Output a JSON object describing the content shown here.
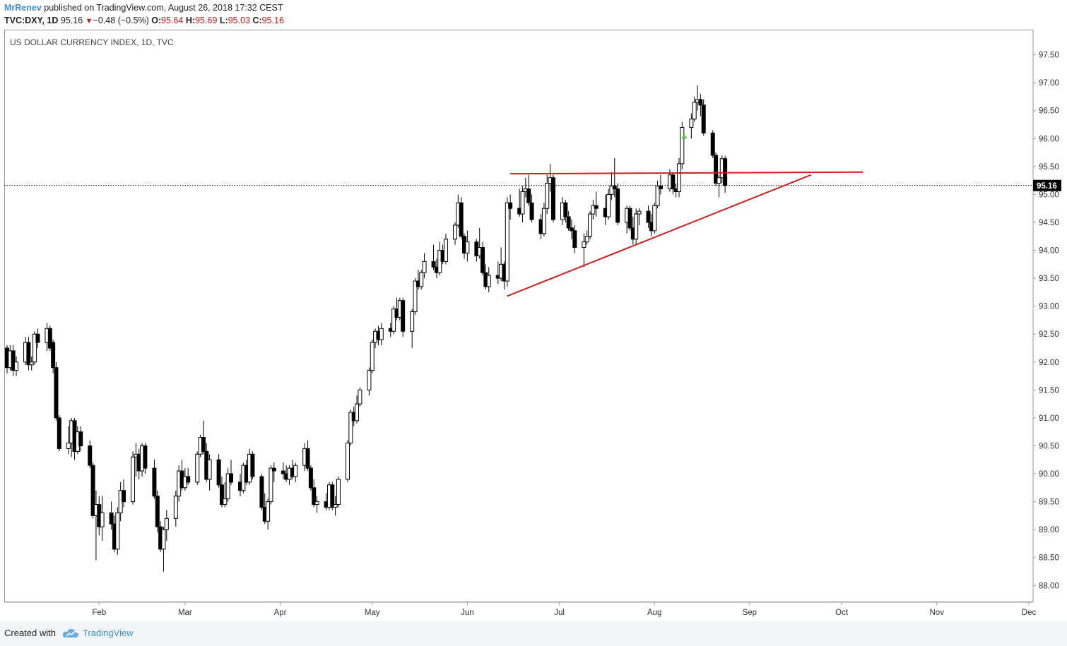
{
  "header": {
    "author": "MrRenev",
    "published_text": "published on TradingView.com, August 26, 2018 17:32 CEST",
    "symbol": "TVC:DXY, 1D",
    "last": "95.16",
    "change": "−0.48 (−0.5%)",
    "o_label": "O:",
    "o_value": "95.64",
    "h_label": "H:",
    "h_value": "95.69",
    "l_label": "L:",
    "l_value": "95.03",
    "c_label": "C:",
    "c_value": "95.16"
  },
  "footer": {
    "created_with": "Created with",
    "brand": "TradingView"
  },
  "chart_data": {
    "type": "candlestick",
    "title": "US DOLLAR CURRENCY INDEX, 1D, TVC",
    "last_price_label": "95.16",
    "last_price": 95.16,
    "y_ticks": [
      "97.50",
      "97.00",
      "96.50",
      "96.00",
      "95.50",
      "95.00",
      "94.50",
      "94.00",
      "93.50",
      "93.00",
      "92.50",
      "92.00",
      "91.50",
      "91.00",
      "90.50",
      "90.00",
      "89.50",
      "89.00",
      "88.50",
      "88.00"
    ],
    "ylim": [
      87.7,
      97.95
    ],
    "x_ticks": [
      "Feb",
      "Mar",
      "Apr",
      "May",
      "Jun",
      "Jul",
      "Aug",
      "Sep",
      "Oct",
      "Nov",
      "Dec"
    ],
    "x_tick_dates": [
      "2018-02-01",
      "2018-03-01",
      "2018-04-01",
      "2018-05-01",
      "2018-06-01",
      "2018-07-01",
      "2018-08-01",
      "2018-09-01",
      "2018-10-01",
      "2018-11-01",
      "2018-12-01"
    ],
    "xlim": [
      "2018-01-02",
      "2018-12-01"
    ],
    "colors": {
      "up": "#ffffff",
      "down": "#000000",
      "wick": "#000000",
      "trendline": "#cc1f1f",
      "axis_text": "#333333",
      "signal": "#5fbf4a"
    },
    "trendlines": [
      {
        "name": "resistance",
        "from": [
          "2018-06-15",
          95.37
        ],
        "to": [
          "2018-10-08",
          95.4
        ]
      },
      {
        "name": "support",
        "from": [
          "2018-06-14",
          93.18
        ],
        "to": [
          "2018-09-21",
          95.35
        ]
      }
    ],
    "signal_marker": {
      "date": "2018-08-10",
      "price": 96.05
    },
    "candles": [
      [
        "2018-01-02",
        92.25,
        92.3,
        91.8,
        91.9
      ],
      [
        "2018-01-03",
        91.9,
        92.3,
        91.85,
        92.2
      ],
      [
        "2018-01-04",
        92.2,
        92.3,
        91.75,
        91.85
      ],
      [
        "2018-01-05",
        91.85,
        92.1,
        91.75,
        92.0
      ],
      [
        "2018-01-08",
        92.0,
        92.45,
        91.95,
        92.35
      ],
      [
        "2018-01-09",
        92.35,
        92.45,
        91.85,
        91.95
      ],
      [
        "2018-01-10",
        91.95,
        92.1,
        91.85,
        92.0
      ],
      [
        "2018-01-11",
        92.0,
        92.55,
        91.95,
        92.5
      ],
      [
        "2018-01-12",
        92.5,
        92.6,
        92.25,
        92.35
      ],
      [
        "2018-01-15",
        92.35,
        92.7,
        92.2,
        92.6
      ],
      [
        "2018-01-16",
        92.6,
        92.65,
        92.2,
        92.25
      ],
      [
        "2018-01-17",
        92.35,
        92.4,
        91.8,
        91.9
      ],
      [
        "2018-01-18",
        91.9,
        92.0,
        90.95,
        91.0
      ],
      [
        "2018-01-19",
        91.0,
        91.05,
        90.4,
        90.45
      ],
      [
        "2018-01-22",
        90.45,
        90.85,
        90.35,
        90.55
      ],
      [
        "2018-01-23",
        90.55,
        91.0,
        90.3,
        90.95
      ],
      [
        "2018-01-24",
        90.95,
        91.0,
        90.25,
        90.4
      ],
      [
        "2018-01-25",
        90.4,
        90.85,
        90.35,
        90.75
      ],
      [
        "2018-01-26",
        90.75,
        90.85,
        90.4,
        90.5
      ],
      [
        "2018-01-29",
        90.5,
        90.6,
        90.1,
        90.15
      ],
      [
        "2018-01-30",
        90.15,
        90.2,
        89.2,
        89.25
      ],
      [
        "2018-01-31",
        89.25,
        89.7,
        88.45,
        89.45
      ],
      [
        "2018-02-01",
        89.45,
        89.6,
        88.9,
        89.05
      ],
      [
        "2018-02-02",
        89.05,
        89.6,
        88.8,
        89.3
      ],
      [
        "2018-02-05",
        89.3,
        89.5,
        89.0,
        89.1
      ],
      [
        "2018-02-06",
        89.1,
        89.25,
        88.6,
        88.65
      ],
      [
        "2018-02-07",
        88.65,
        89.4,
        88.55,
        89.3
      ],
      [
        "2018-02-08",
        89.3,
        89.85,
        89.15,
        89.7
      ],
      [
        "2018-02-09",
        89.7,
        89.9,
        89.4,
        89.5
      ],
      [
        "2018-02-12",
        89.5,
        90.4,
        89.45,
        90.3
      ],
      [
        "2018-02-13",
        90.3,
        90.55,
        89.95,
        90.35
      ],
      [
        "2018-02-14",
        90.35,
        90.45,
        89.9,
        90.05
      ],
      [
        "2018-02-15",
        90.05,
        90.55,
        89.95,
        90.5
      ],
      [
        "2018-02-16",
        90.5,
        90.55,
        90.0,
        90.1
      ],
      [
        "2018-02-19",
        90.1,
        90.25,
        89.55,
        89.6
      ],
      [
        "2018-02-20",
        89.6,
        89.7,
        88.95,
        89.05
      ],
      [
        "2018-02-21",
        89.05,
        89.15,
        88.6,
        88.65
      ],
      [
        "2018-02-22",
        88.65,
        89.05,
        88.25,
        89.0
      ],
      [
        "2018-02-23",
        89.0,
        89.35,
        88.8,
        89.2
      ],
      [
        "2018-02-26",
        89.2,
        89.7,
        89.05,
        89.6
      ],
      [
        "2018-02-27",
        89.6,
        90.15,
        89.5,
        90.05
      ],
      [
        "2018-02-28",
        90.05,
        90.25,
        89.7,
        89.75
      ],
      [
        "2018-03-01",
        89.75,
        90.1,
        89.7,
        89.95
      ],
      [
        "2018-03-02",
        89.95,
        90.1,
        89.8,
        89.85
      ],
      [
        "2018-03-05",
        89.85,
        90.4,
        89.8,
        90.35
      ],
      [
        "2018-03-06",
        90.35,
        90.7,
        90.3,
        90.65
      ],
      [
        "2018-03-07",
        90.65,
        90.95,
        90.35,
        90.4
      ],
      [
        "2018-03-08",
        90.4,
        90.55,
        89.85,
        89.9
      ],
      [
        "2018-03-09",
        89.9,
        90.35,
        89.7,
        90.25
      ],
      [
        "2018-03-12",
        90.25,
        90.35,
        89.75,
        89.8
      ],
      [
        "2018-03-13",
        89.8,
        89.95,
        89.4,
        89.45
      ],
      [
        "2018-03-14",
        89.45,
        89.85,
        89.4,
        89.55
      ],
      [
        "2018-03-15",
        89.55,
        90.1,
        89.5,
        90.0
      ],
      [
        "2018-03-16",
        90.0,
        90.25,
        89.8,
        89.85
      ],
      [
        "2018-03-19",
        89.85,
        90.0,
        89.6,
        89.7
      ],
      [
        "2018-03-20",
        89.7,
        90.2,
        89.65,
        90.15
      ],
      [
        "2018-03-21",
        90.15,
        90.25,
        89.8,
        89.85
      ],
      [
        "2018-03-22",
        89.85,
        90.45,
        89.8,
        90.35
      ],
      [
        "2018-03-23",
        90.35,
        90.4,
        89.9,
        89.95
      ],
      [
        "2018-03-26",
        89.95,
        90.0,
        89.35,
        89.4
      ],
      [
        "2018-03-27",
        89.4,
        89.65,
        89.1,
        89.15
      ],
      [
        "2018-03-28",
        89.15,
        89.55,
        89.0,
        89.5
      ],
      [
        "2018-03-29",
        89.5,
        90.15,
        89.45,
        90.1
      ],
      [
        "2018-03-30",
        90.1,
        90.2,
        89.85,
        90.05
      ],
      [
        "2018-04-02",
        90.05,
        90.2,
        89.9,
        90.0
      ],
      [
        "2018-04-03",
        90.0,
        90.15,
        89.85,
        89.9
      ],
      [
        "2018-04-04",
        89.9,
        90.15,
        89.8,
        90.1
      ],
      [
        "2018-04-05",
        90.1,
        90.25,
        89.9,
        89.95
      ],
      [
        "2018-04-06",
        89.95,
        90.2,
        89.85,
        90.15
      ],
      [
        "2018-04-09",
        90.15,
        90.55,
        90.05,
        90.45
      ],
      [
        "2018-04-10",
        90.45,
        90.6,
        90.05,
        90.1
      ],
      [
        "2018-04-11",
        90.1,
        90.15,
        89.7,
        89.75
      ],
      [
        "2018-04-12",
        89.75,
        89.9,
        89.4,
        89.45
      ],
      [
        "2018-04-13",
        89.45,
        89.6,
        89.3,
        89.5
      ],
      [
        "2018-04-16",
        89.5,
        89.65,
        89.35,
        89.4
      ],
      [
        "2018-04-17",
        89.4,
        89.85,
        89.35,
        89.8
      ],
      [
        "2018-04-18",
        89.8,
        89.85,
        89.35,
        89.4
      ],
      [
        "2018-04-19",
        89.4,
        89.6,
        89.25,
        89.45
      ],
      [
        "2018-04-20",
        89.45,
        89.95,
        89.4,
        89.9
      ],
      [
        "2018-04-23",
        89.9,
        90.6,
        89.85,
        90.55
      ],
      [
        "2018-04-24",
        90.55,
        91.15,
        90.5,
        91.1
      ],
      [
        "2018-04-25",
        91.1,
        91.2,
        90.85,
        90.95
      ],
      [
        "2018-04-26",
        90.95,
        91.4,
        90.9,
        91.25
      ],
      [
        "2018-04-27",
        91.25,
        91.55,
        91.2,
        91.5
      ],
      [
        "2018-04-30",
        91.5,
        91.9,
        91.4,
        91.85
      ],
      [
        "2018-05-01",
        91.85,
        92.4,
        91.8,
        92.35
      ],
      [
        "2018-05-02",
        92.35,
        92.6,
        92.25,
        92.55
      ],
      [
        "2018-05-03",
        92.55,
        92.65,
        92.3,
        92.4
      ],
      [
        "2018-05-04",
        92.4,
        92.7,
        92.3,
        92.6
      ],
      [
        "2018-05-07",
        92.6,
        92.7,
        92.45,
        92.55
      ],
      [
        "2018-05-08",
        92.55,
        93.0,
        92.5,
        92.95
      ],
      [
        "2018-05-09",
        92.95,
        93.15,
        92.75,
        92.8
      ],
      [
        "2018-05-10",
        92.8,
        93.15,
        92.75,
        93.1
      ],
      [
        "2018-05-11",
        93.1,
        93.15,
        92.45,
        92.55
      ],
      [
        "2018-05-14",
        92.55,
        92.95,
        92.25,
        92.9
      ],
      [
        "2018-05-15",
        92.9,
        93.5,
        92.85,
        93.45
      ],
      [
        "2018-05-16",
        93.45,
        93.65,
        93.3,
        93.35
      ],
      [
        "2018-05-17",
        93.35,
        93.65,
        93.3,
        93.6
      ],
      [
        "2018-05-18",
        93.6,
        93.95,
        93.5,
        93.8
      ],
      [
        "2018-05-21",
        93.8,
        94.1,
        93.65,
        93.7
      ],
      [
        "2018-05-22",
        93.7,
        93.85,
        93.5,
        93.6
      ],
      [
        "2018-05-23",
        93.6,
        94.15,
        93.55,
        94.0
      ],
      [
        "2018-05-24",
        94.0,
        94.1,
        93.75,
        93.8
      ],
      [
        "2018-05-25",
        93.8,
        94.3,
        93.75,
        94.2
      ],
      [
        "2018-05-28",
        94.2,
        94.5,
        94.1,
        94.45
      ],
      [
        "2018-05-29",
        94.45,
        95.0,
        94.4,
        94.85
      ],
      [
        "2018-05-30",
        94.85,
        94.95,
        94.2,
        94.25
      ],
      [
        "2018-05-31",
        94.25,
        94.3,
        93.85,
        93.95
      ],
      [
        "2018-06-01",
        93.95,
        94.35,
        93.8,
        94.15
      ],
      [
        "2018-06-04",
        94.15,
        94.2,
        93.8,
        93.9
      ],
      [
        "2018-06-05",
        93.9,
        94.4,
        93.85,
        94.05
      ],
      [
        "2018-06-06",
        94.05,
        94.15,
        93.55,
        93.6
      ],
      [
        "2018-06-07",
        93.6,
        93.75,
        93.3,
        93.35
      ],
      [
        "2018-06-08",
        93.35,
        93.7,
        93.25,
        93.55
      ],
      [
        "2018-06-11",
        93.55,
        93.8,
        93.4,
        93.5
      ],
      [
        "2018-06-12",
        93.5,
        94.05,
        93.45,
        93.75
      ],
      [
        "2018-06-13",
        93.75,
        93.8,
        93.3,
        93.45
      ],
      [
        "2018-06-14",
        93.45,
        94.95,
        93.35,
        94.85
      ],
      [
        "2018-06-15",
        94.85,
        95.0,
        94.55,
        94.75
      ],
      [
        "2018-06-18",
        94.75,
        95.1,
        94.6,
        94.65
      ],
      [
        "2018-06-19",
        94.65,
        95.15,
        94.5,
        95.05
      ],
      [
        "2018-06-20",
        95.05,
        95.3,
        94.95,
        95.1
      ],
      [
        "2018-06-21",
        95.1,
        95.35,
        94.8,
        94.85
      ],
      [
        "2018-06-22",
        94.85,
        95.0,
        94.5,
        94.55
      ],
      [
        "2018-06-25",
        94.55,
        94.65,
        94.2,
        94.3
      ],
      [
        "2018-06-26",
        94.3,
        94.85,
        94.25,
        94.75
      ],
      [
        "2018-06-27",
        94.75,
        95.35,
        94.65,
        95.2
      ],
      [
        "2018-06-28",
        95.2,
        95.55,
        95.05,
        95.3
      ],
      [
        "2018-06-29",
        95.3,
        95.35,
        94.5,
        94.55
      ],
      [
        "2018-07-02",
        94.55,
        94.95,
        94.45,
        94.85
      ],
      [
        "2018-07-03",
        94.85,
        94.9,
        94.5,
        94.6
      ],
      [
        "2018-07-04",
        94.6,
        94.7,
        94.35,
        94.4
      ],
      [
        "2018-07-05",
        94.4,
        94.55,
        94.2,
        94.35
      ],
      [
        "2018-07-06",
        94.35,
        94.45,
        93.95,
        94.05
      ],
      [
        "2018-07-09",
        94.05,
        94.3,
        93.7,
        94.15
      ],
      [
        "2018-07-10",
        94.15,
        94.35,
        94.1,
        94.25
      ],
      [
        "2018-07-11",
        94.25,
        94.7,
        94.2,
        94.65
      ],
      [
        "2018-07-12",
        94.65,
        94.9,
        94.55,
        94.8
      ],
      [
        "2018-07-13",
        94.8,
        95.05,
        94.6,
        94.75
      ],
      [
        "2018-07-16",
        94.75,
        95.0,
        94.45,
        94.6
      ],
      [
        "2018-07-17",
        94.6,
        95.1,
        94.55,
        95.0
      ],
      [
        "2018-07-18",
        95.0,
        95.4,
        94.9,
        95.15
      ],
      [
        "2018-07-19",
        95.15,
        95.65,
        94.95,
        95.1
      ],
      [
        "2018-07-20",
        95.1,
        95.2,
        94.45,
        94.5
      ],
      [
        "2018-07-23",
        94.5,
        94.8,
        94.3,
        94.75
      ],
      [
        "2018-07-24",
        94.75,
        94.8,
        94.35,
        94.4
      ],
      [
        "2018-07-25",
        94.4,
        94.6,
        94.1,
        94.2
      ],
      [
        "2018-07-26",
        94.2,
        94.75,
        94.1,
        94.65
      ],
      [
        "2018-07-27",
        94.65,
        94.75,
        94.45,
        94.7
      ],
      [
        "2018-07-30",
        94.7,
        94.8,
        94.4,
        94.5
      ],
      [
        "2018-07-31",
        94.5,
        94.65,
        94.25,
        94.35
      ],
      [
        "2018-08-01",
        94.35,
        94.85,
        94.3,
        94.8
      ],
      [
        "2018-08-02",
        94.8,
        95.25,
        94.75,
        95.15
      ],
      [
        "2018-08-03",
        95.15,
        95.35,
        95.0,
        95.1
      ],
      [
        "2018-08-06",
        95.1,
        95.45,
        95.05,
        95.35
      ],
      [
        "2018-08-07",
        95.35,
        95.4,
        95.0,
        95.1
      ],
      [
        "2018-08-08",
        95.1,
        95.2,
        94.95,
        95.05
      ],
      [
        "2018-08-09",
        95.05,
        95.65,
        94.95,
        95.55
      ],
      [
        "2018-08-10",
        95.55,
        96.3,
        95.45,
        96.2
      ],
      [
        "2018-08-13",
        96.2,
        96.45,
        96.0,
        96.35
      ],
      [
        "2018-08-14",
        96.35,
        96.75,
        96.3,
        96.65
      ],
      [
        "2018-08-15",
        96.65,
        96.95,
        96.5,
        96.7
      ],
      [
        "2018-08-16",
        96.7,
        96.8,
        96.4,
        96.6
      ],
      [
        "2018-08-17",
        96.6,
        96.7,
        96.05,
        96.1
      ],
      [
        "2018-08-20",
        96.1,
        96.15,
        95.65,
        95.7
      ],
      [
        "2018-08-21",
        95.7,
        95.75,
        95.15,
        95.2
      ],
      [
        "2018-08-22",
        95.2,
        95.35,
        94.95,
        95.3
      ],
      [
        "2018-08-23",
        95.3,
        95.7,
        95.2,
        95.64
      ],
      [
        "2018-08-24",
        95.64,
        95.69,
        95.03,
        95.16
      ]
    ]
  }
}
